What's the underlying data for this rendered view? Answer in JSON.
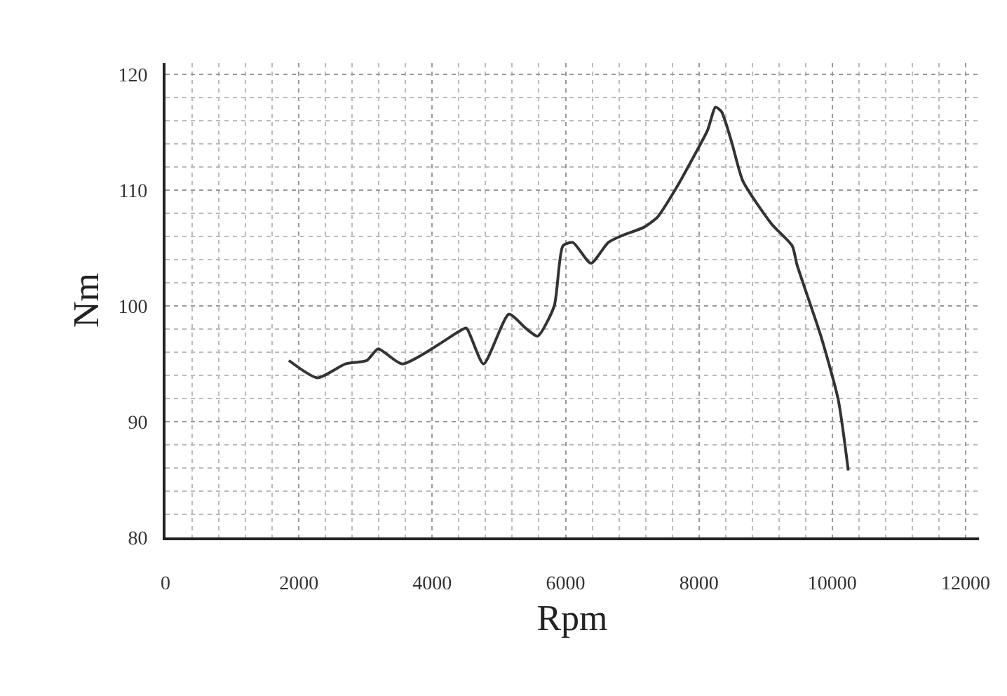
{
  "chart_data": {
    "type": "line",
    "xlabel": "Rpm",
    "ylabel": "Nm",
    "x": [
      1850,
      2280,
      2700,
      3020,
      3190,
      3550,
      4400,
      4510,
      4770,
      5150,
      5400,
      5580,
      5830,
      5960,
      6110,
      6380,
      6640,
      6850,
      7170,
      7380,
      7660,
      7920,
      8130,
      8250,
      8340,
      8490,
      8660,
      9090,
      9400,
      9470,
      9830,
      10090,
      10240
    ],
    "series": [
      {
        "color": "#333333",
        "values": [
          95.3,
          93.8,
          95.0,
          95.3,
          96.3,
          95.0,
          97.8,
          98.1,
          95.0,
          99.3,
          98.1,
          97.4,
          100.0,
          105.2,
          105.5,
          103.7,
          105.5,
          106.1,
          106.8,
          107.7,
          110.2,
          112.9,
          115.2,
          117.2,
          116.8,
          114.2,
          110.8,
          107.1,
          105.2,
          103.6,
          97.4,
          91.9,
          85.8
        ]
      }
    ],
    "xlim": [
      0,
      12200
    ],
    "ylim": [
      80,
      121
    ],
    "xticks": [
      0,
      2000,
      4000,
      6000,
      8000,
      10000,
      12000
    ],
    "yticks": [
      80,
      90,
      100,
      110,
      120
    ],
    "grid": true,
    "marker": "none",
    "line_style": "solid"
  }
}
